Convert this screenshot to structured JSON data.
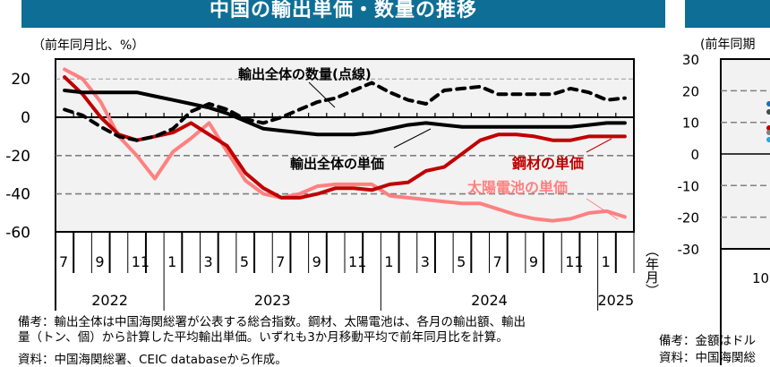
{
  "left_panel": {
    "title": "中国の輸出単価・数量の推移",
    "unit_label": "（前年同月比、%）",
    "y_ticks": [
      "20",
      "0",
      "-20",
      "-40",
      "-60"
    ],
    "month_labels": [
      "7",
      "9",
      "11",
      "1",
      "3",
      "5",
      "7",
      "9",
      "11",
      "1",
      "3",
      "5",
      "7",
      "9",
      "11",
      "1"
    ],
    "year_labels": [
      "2022",
      "2023",
      "2024",
      "2025"
    ],
    "year_axis_unit": "（年月）",
    "annotations": {
      "volume": "輸出全体の数量(点線)",
      "unit_price": "輸出全体の単価",
      "steel": "鋼材の単価",
      "solar": "太陽電池の単価"
    },
    "notes": [
      "備考：輸出全体は中国海関総署が公表する総合指数。鋼材、太陽電池は、各月の輸出額、輸出",
      "量（トン、個）から計算した平均輸出単価。いずれも3か月移動平均で前年同月比を計算。",
      "資料：中国海関総署、CEIC databaseから作成。"
    ]
  },
  "right_panel": {
    "unit_label": "(前年同期",
    "y_ticks": [
      "30",
      "20",
      "10",
      "0",
      "-10",
      "-20",
      "-30"
    ],
    "x_label_partial": "10",
    "notes": [
      "備考：金額はドル",
      "資料：中国海関総"
    ]
  },
  "colors": {
    "banner": "#0e6e95",
    "plot_bg": "#f2f2f2",
    "overall_price": "#000000",
    "overall_volume": "#000000",
    "steel": "#c00000",
    "solar": "#ff8080",
    "gridline": "#808080"
  },
  "chart_data": {
    "type": "line",
    "title": "中国の輸出単価・数量の推移",
    "ylabel": "前年同月比、%",
    "xlabel": "年月",
    "ylim": [
      -60,
      30
    ],
    "grid": "dashed horizontal at 20, -20, -40",
    "x": [
      "2022-07",
      "2022-08",
      "2022-09",
      "2022-10",
      "2022-11",
      "2022-12",
      "2023-01",
      "2023-02",
      "2023-03",
      "2023-04",
      "2023-05",
      "2023-06",
      "2023-07",
      "2023-08",
      "2023-09",
      "2023-10",
      "2023-11",
      "2023-12",
      "2024-01",
      "2024-02",
      "2024-03",
      "2024-04",
      "2024-05",
      "2024-06",
      "2024-07",
      "2024-08",
      "2024-09",
      "2024-10",
      "2024-11",
      "2024-12",
      "2025-01",
      "2025-02"
    ],
    "series": [
      {
        "name": "輸出全体の単価",
        "style": "solid",
        "color": "#000000",
        "values": [
          14,
          13,
          13,
          13,
          13,
          11,
          9,
          7,
          5,
          2,
          -2,
          -6,
          -7,
          -8,
          -9,
          -9,
          -9,
          -8,
          -6,
          -4,
          -3,
          -4,
          -5,
          -5,
          -5,
          -5,
          -5,
          -5,
          -5,
          -4,
          -3,
          -3
        ]
      },
      {
        "name": "輸出全体の数量(点線)",
        "style": "dashed",
        "color": "#000000",
        "values": [
          4,
          1,
          -5,
          -10,
          -12,
          -10,
          -6,
          3,
          7,
          4,
          -1,
          -3,
          0,
          4,
          8,
          10,
          14,
          18,
          13,
          9,
          7,
          14,
          15,
          16,
          12,
          12,
          12,
          12,
          15,
          13,
          9,
          10
        ]
      },
      {
        "name": "鋼材の単価",
        "style": "solid",
        "color": "#c00000",
        "values": [
          21,
          12,
          0,
          -9,
          -12,
          -10,
          -8,
          -3,
          -9,
          -15,
          -29,
          -37,
          -42,
          -42,
          -40,
          -37,
          -37,
          -38,
          -35,
          -34,
          -28,
          -26,
          -19,
          -12,
          -9,
          -9,
          -10,
          -12,
          -12,
          -10,
          -10,
          -10
        ]
      },
      {
        "name": "太陽電池の単価",
        "style": "solid",
        "color": "#ff8080",
        "values": [
          25,
          20,
          8,
          -10,
          -20,
          -32,
          -18,
          -11,
          -3,
          -18,
          -33,
          -40,
          -42,
          -40,
          -36,
          -35,
          -35,
          -35,
          -41,
          -42,
          -43,
          -44,
          -45,
          -45,
          -48,
          -51,
          -53,
          -54,
          -53,
          -50,
          -49,
          -52
        ]
      }
    ]
  }
}
